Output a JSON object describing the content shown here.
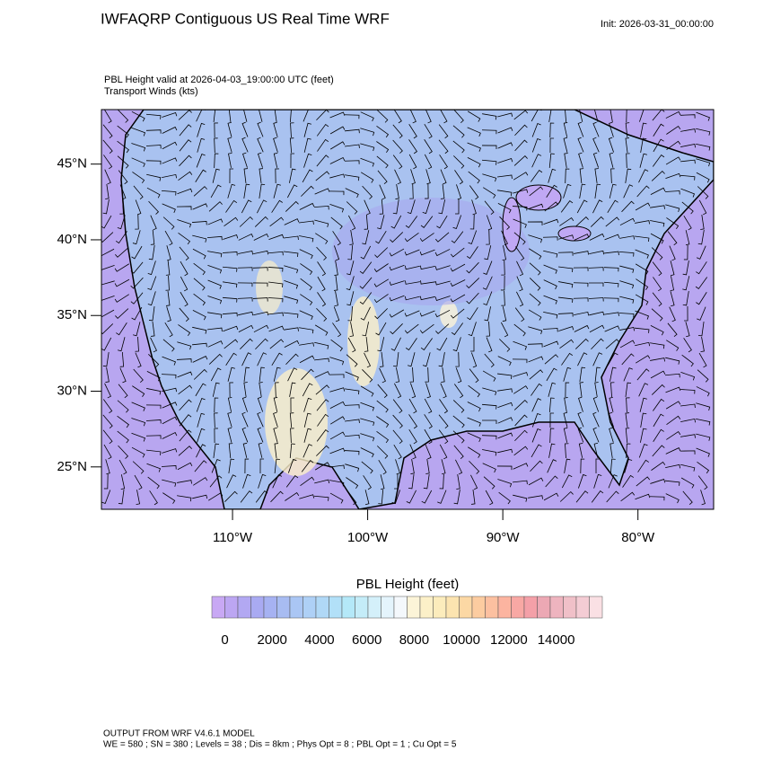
{
  "header": {
    "title": "IWFAQRP Contiguous US Real Time WRF",
    "init": "Init: 2026-03-31_00:00:00",
    "field_line": "PBL Height valid at 2026-04-03_19:00:00 UTC   (feet)",
    "wind_line": "Transport Winds   (kts)"
  },
  "map": {
    "lon_range": [
      -119.7,
      -74.4
    ],
    "lat_range": [
      22.2,
      48.6
    ],
    "lat_ticks": [
      {
        "value": 25,
        "label": "25°N"
      },
      {
        "value": 30,
        "label": "30°N"
      },
      {
        "value": 35,
        "label": "35°N"
      },
      {
        "value": 40,
        "label": "40°N"
      },
      {
        "value": 45,
        "label": "45°N"
      }
    ],
    "lon_ticks": [
      {
        "value": -110,
        "label": "110°W"
      },
      {
        "value": -100,
        "label": "100°W"
      },
      {
        "value": -90,
        "label": "90°W"
      },
      {
        "value": -80,
        "label": "80°W"
      }
    ]
  },
  "colorbar": {
    "title": "PBL Height  (feet)",
    "colors": [
      "#c8a8f4",
      "#bca6f2",
      "#b2a8f2",
      "#a9aaf2",
      "#a6b2f2",
      "#a8bcf2",
      "#aac6f4",
      "#aed0f6",
      "#b0d8f6",
      "#b2e0f8",
      "#b4e8f8",
      "#c4ecf8",
      "#d4f0fa",
      "#e4f4fc",
      "#f4f8fc",
      "#fcf4d8",
      "#fcf0c8",
      "#fcecbc",
      "#fce4b0",
      "#fcd8a4",
      "#fccca0",
      "#fcc0a0",
      "#fcb4a0",
      "#f8a8a4",
      "#f4a0a8",
      "#eca8b4",
      "#eeb4bf",
      "#f0c0c8",
      "#f4ccd4",
      "#fae0e4"
    ],
    "ticks": [
      0,
      2000,
      4000,
      6000,
      8000,
      10000,
      12000,
      14000
    ]
  },
  "footer": {
    "line1": "OUTPUT FROM WRF V4.6.1 MODEL",
    "line2": "WE = 580 ; SN = 380 ; Levels = 38 ; Dis = 8km ; Phys Opt = 8 ; PBL Opt = 1 ; Cu Opt = 5"
  }
}
